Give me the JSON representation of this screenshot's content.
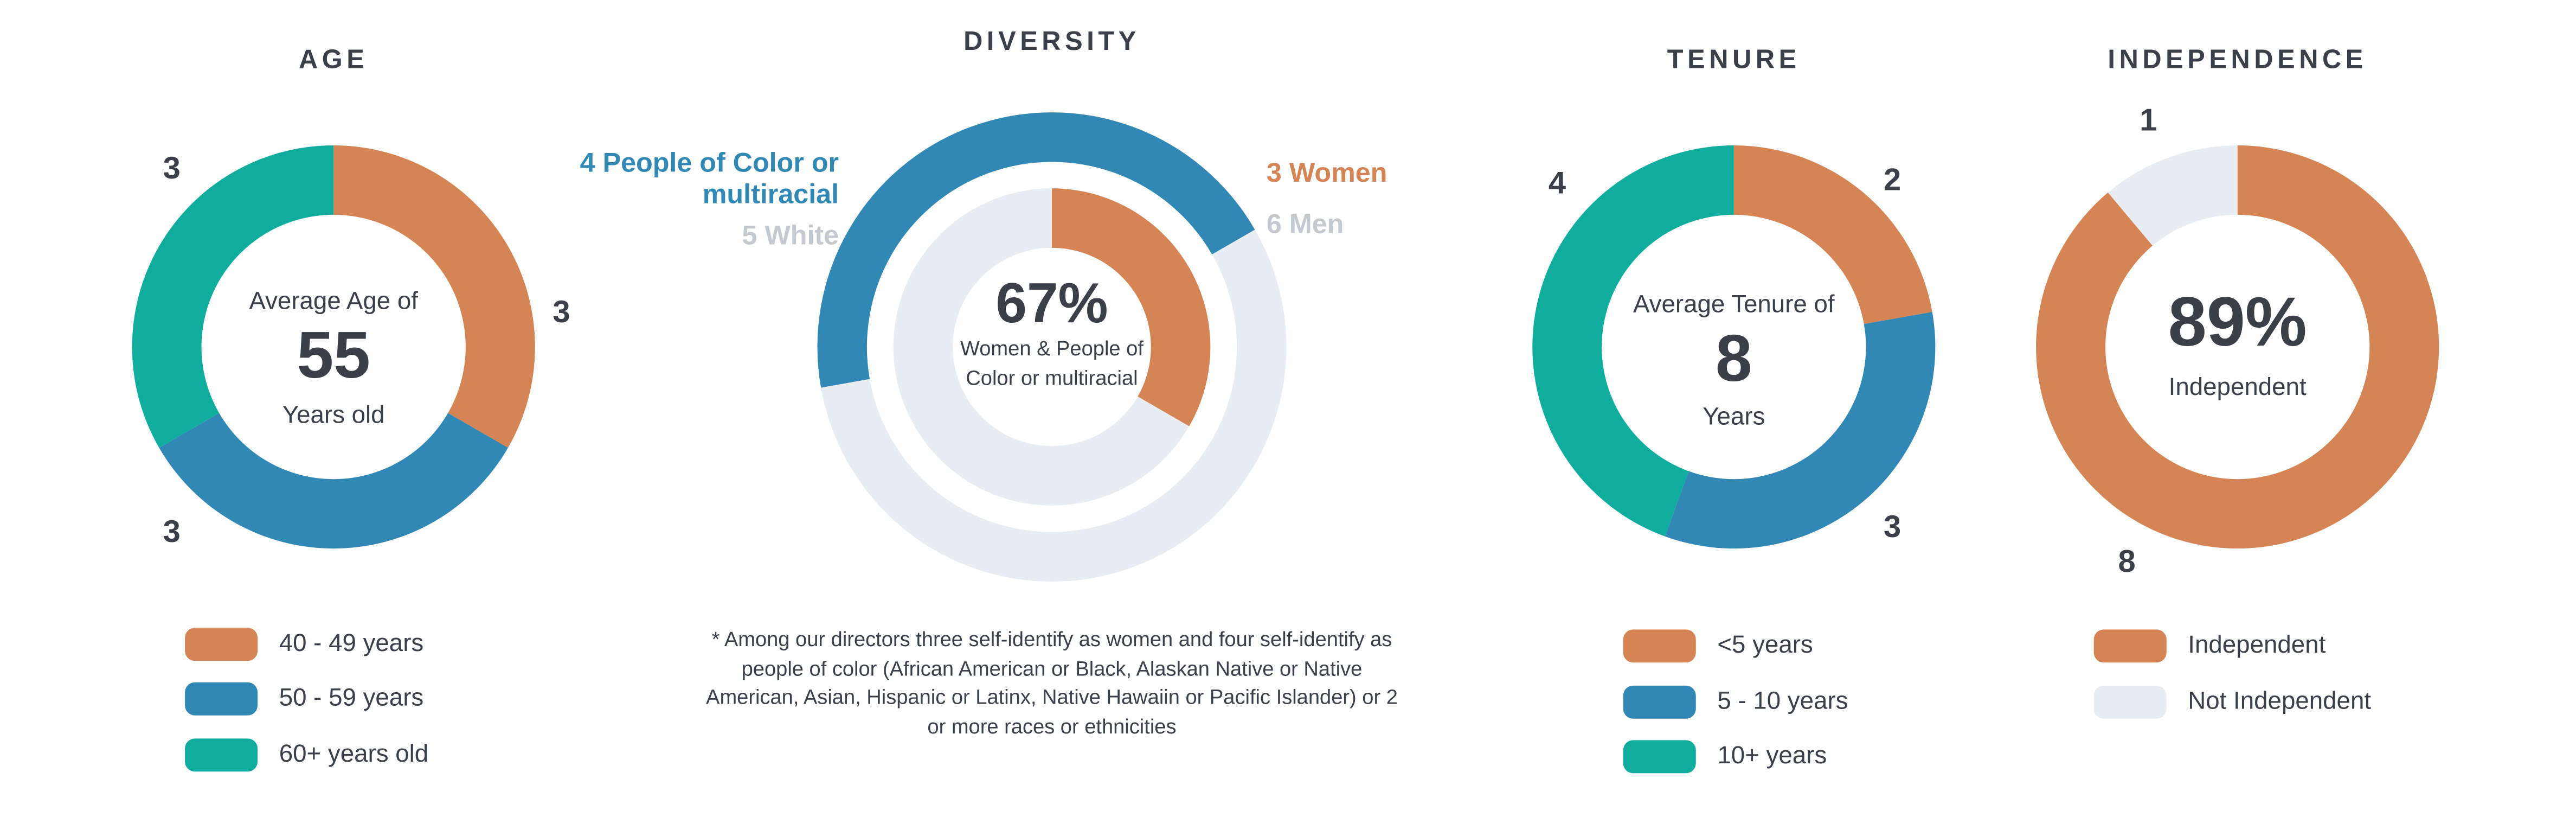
{
  "chart_data": [
    {
      "type": "donut",
      "title": "AGE",
      "categories": [
        "40 - 49 years",
        "50 - 59 years",
        "60+ years old"
      ],
      "values": [
        3,
        3,
        3
      ],
      "colors": [
        "#d58455",
        "#3288b5",
        "#10ad9f"
      ],
      "center_text": [
        "Average Age of",
        "55",
        "Years old"
      ]
    },
    {
      "type": "nested_donut",
      "title": "DIVERSITY",
      "rings": [
        {
          "categories": [
            "People of Color or multiracial",
            "White"
          ],
          "values": [
            4,
            5
          ],
          "colors": [
            "#3288b5",
            "#e8edf2"
          ],
          "label_colors": [
            "#3288b5",
            "#c4c9d0"
          ]
        },
        {
          "categories": [
            "Women",
            "Men"
          ],
          "values": [
            3,
            6
          ],
          "colors": [
            "#d58455",
            "#e8edf2"
          ],
          "label_colors": [
            "#d58455",
            "#c4c9d0"
          ]
        }
      ],
      "center_text": [
        "67%",
        "Women & People of Color or multiracial"
      ],
      "footnote": "* Among our directors three self-identify as women and four self-identify as people of color (African American or Black, Alaskan Native or Native American, Asian, Hispanic or Latinx, Native Hawaiin or Pacific Islander) or 2 or more races or ethnicities"
    },
    {
      "type": "donut",
      "title": "TENURE",
      "categories": [
        "<5 years",
        "5 - 10 years",
        "10+ years"
      ],
      "values": [
        2,
        3,
        4
      ],
      "colors": [
        "#d58455",
        "#3288b5",
        "#10ad9f"
      ],
      "center_text": [
        "Average Tenure of",
        "8",
        "Years"
      ]
    },
    {
      "type": "donut",
      "title": "INDEPENDENCE",
      "categories": [
        "Independent",
        "Not Independent"
      ],
      "values": [
        8,
        1
      ],
      "colors": [
        "#d58455",
        "#e8edf2"
      ],
      "label_colors": [
        "#d58455",
        "#a0a6ae"
      ],
      "center_text": [
        "89%",
        "Independent"
      ]
    }
  ]
}
